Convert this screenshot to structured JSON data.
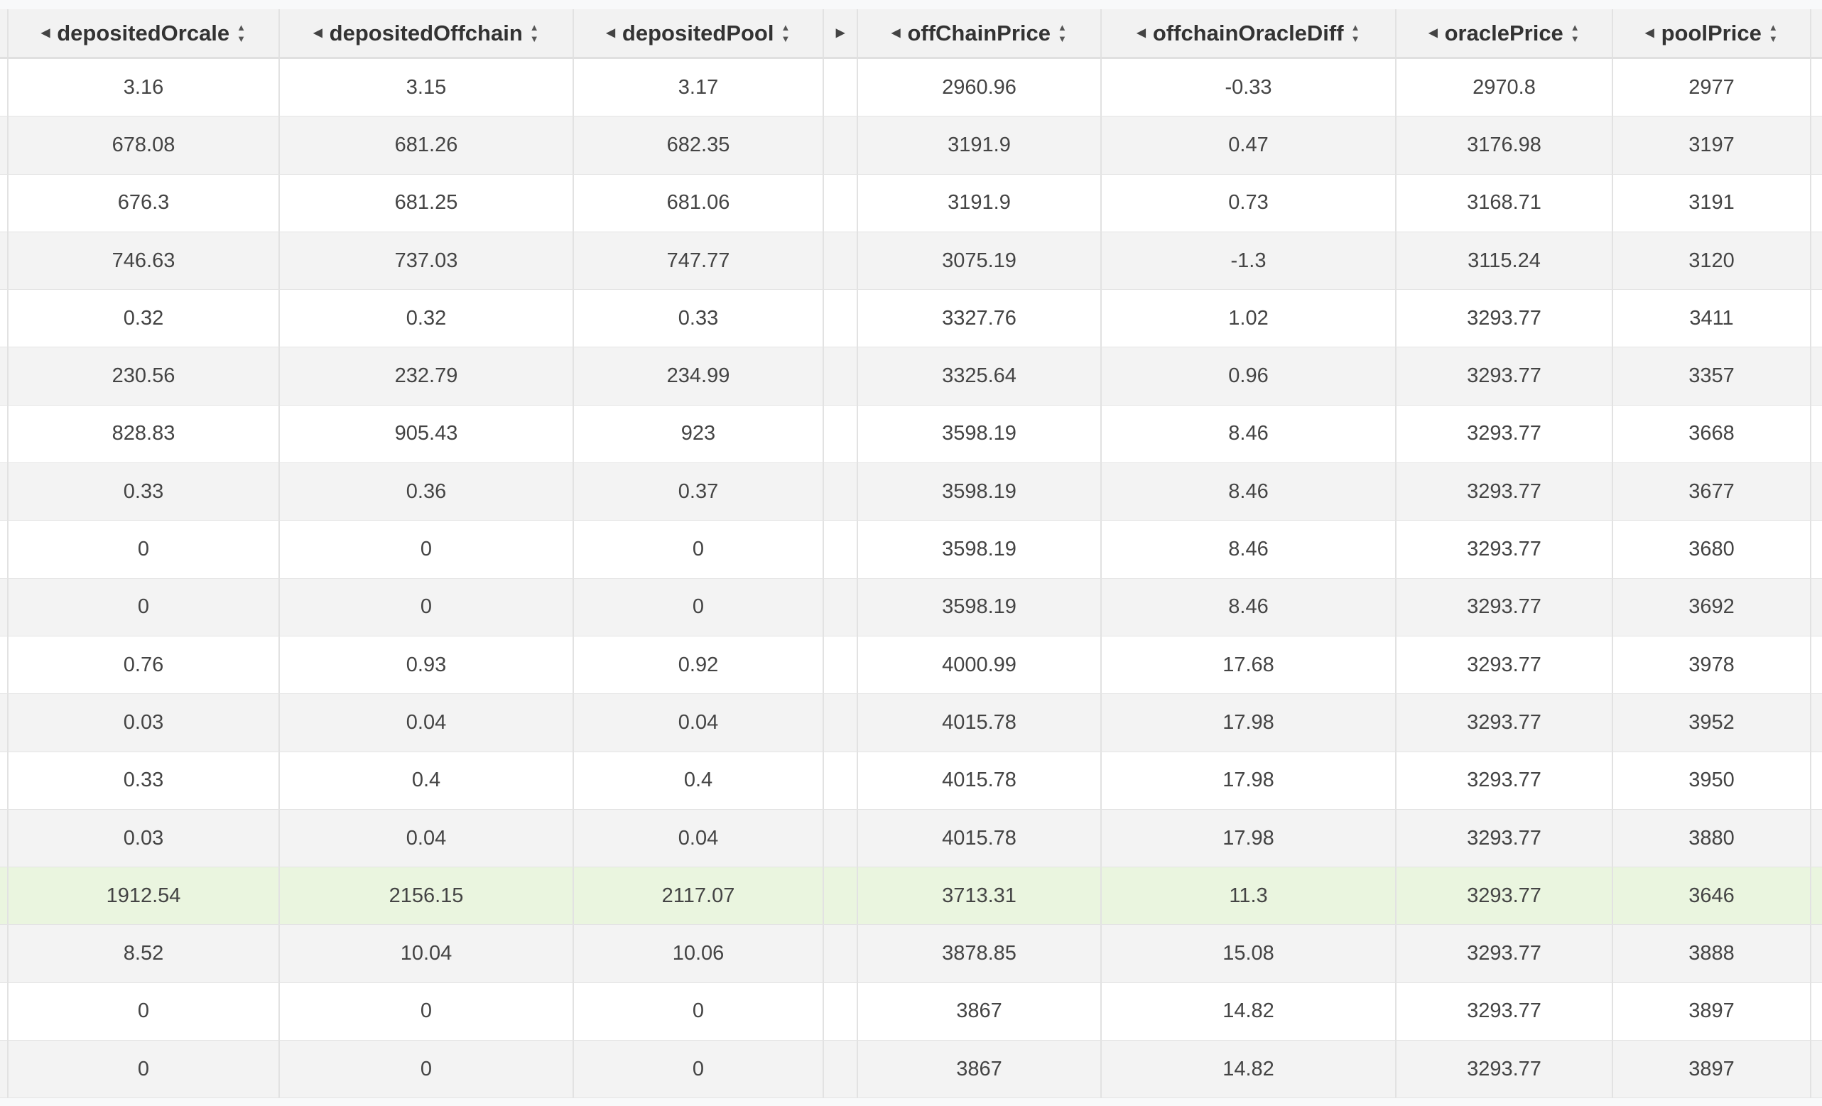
{
  "columns": [
    {
      "key": "depositedOrcale",
      "label": "depositedOrcale"
    },
    {
      "key": "depositedOffchain",
      "label": "depositedOffchain"
    },
    {
      "key": "depositedPool",
      "label": "depositedPool"
    },
    {
      "key": "collapsed",
      "label": ""
    },
    {
      "key": "offChainPrice",
      "label": "offChainPrice"
    },
    {
      "key": "offchainOracleDiff",
      "label": "offchainOracleDiff"
    },
    {
      "key": "oraclePrice",
      "label": "oraclePrice"
    },
    {
      "key": "poolPrice",
      "label": "poolPrice"
    }
  ],
  "highlighted_row": 14,
  "colors": {
    "highlight": "#eaf5df",
    "stripe": "#f3f3f3"
  },
  "rows": [
    [
      "3.16",
      "3.15",
      "3.17",
      "",
      "2960.96",
      "-0.33",
      "2970.8",
      "2977"
    ],
    [
      "678.08",
      "681.26",
      "682.35",
      "",
      "3191.9",
      "0.47",
      "3176.98",
      "3197"
    ],
    [
      "676.3",
      "681.25",
      "681.06",
      "",
      "3191.9",
      "0.73",
      "3168.71",
      "3191"
    ],
    [
      "746.63",
      "737.03",
      "747.77",
      "",
      "3075.19",
      "-1.3",
      "3115.24",
      "3120"
    ],
    [
      "0.32",
      "0.32",
      "0.33",
      "",
      "3327.76",
      "1.02",
      "3293.77",
      "3411"
    ],
    [
      "230.56",
      "232.79",
      "234.99",
      "",
      "3325.64",
      "0.96",
      "3293.77",
      "3357"
    ],
    [
      "828.83",
      "905.43",
      "923",
      "",
      "3598.19",
      "8.46",
      "3293.77",
      "3668"
    ],
    [
      "0.33",
      "0.36",
      "0.37",
      "",
      "3598.19",
      "8.46",
      "3293.77",
      "3677"
    ],
    [
      "0",
      "0",
      "0",
      "",
      "3598.19",
      "8.46",
      "3293.77",
      "3680"
    ],
    [
      "0",
      "0",
      "0",
      "",
      "3598.19",
      "8.46",
      "3293.77",
      "3692"
    ],
    [
      "0.76",
      "0.93",
      "0.92",
      "",
      "4000.99",
      "17.68",
      "3293.77",
      "3978"
    ],
    [
      "0.03",
      "0.04",
      "0.04",
      "",
      "4015.78",
      "17.98",
      "3293.77",
      "3952"
    ],
    [
      "0.33",
      "0.4",
      "0.4",
      "",
      "4015.78",
      "17.98",
      "3293.77",
      "3950"
    ],
    [
      "0.03",
      "0.04",
      "0.04",
      "",
      "4015.78",
      "17.98",
      "3293.77",
      "3880"
    ],
    [
      "1912.54",
      "2156.15",
      "2117.07",
      "",
      "3713.31",
      "11.3",
      "3293.77",
      "3646"
    ],
    [
      "8.52",
      "10.04",
      "10.06",
      "",
      "3878.85",
      "15.08",
      "3293.77",
      "3888"
    ],
    [
      "0",
      "0",
      "0",
      "",
      "3867",
      "14.82",
      "3293.77",
      "3897"
    ],
    [
      "0",
      "0",
      "0",
      "",
      "3867",
      "14.82",
      "3293.77",
      "3897"
    ]
  ]
}
